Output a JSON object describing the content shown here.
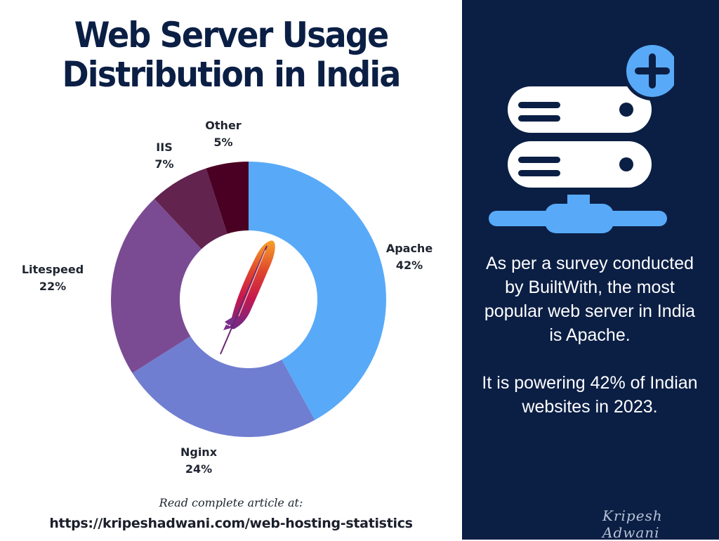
{
  "title": {
    "line1": "Web Server Usage",
    "line2": "Distribution in India"
  },
  "chart_data": {
    "type": "pie",
    "subtype": "donut",
    "title": "Web Server Usage Distribution in India",
    "categories": [
      "Apache",
      "Nginx",
      "Litespeed",
      "IIS",
      "Other"
    ],
    "values": [
      42,
      24,
      22,
      7,
      5
    ],
    "unit": "%",
    "colors": [
      "#58aaf8",
      "#6f7ed0",
      "#7a4b93",
      "#62234f",
      "#4a0022"
    ],
    "labels": [
      {
        "name": "Apache",
        "value": "42%"
      },
      {
        "name": "Nginx",
        "value": "24%"
      },
      {
        "name": "Litespeed",
        "value": "22%"
      },
      {
        "name": "IIS",
        "value": "7%"
      },
      {
        "name": "Other",
        "value": "5%"
      }
    ],
    "start_angle": "12 o'clock, clockwise",
    "center_icon": "apache-feather-logo",
    "legend": "none (direct labels)"
  },
  "footer": {
    "read_label": "Read complete article at:",
    "url": "https://kripeshadwani.com/web-hosting-statistics"
  },
  "sidebar": {
    "icon": "server-add-icon",
    "paragraph1": "As per a survey conducted by BuiltWith, the most popular web server in India is Apache.",
    "paragraph2": "It is powering 42% of Indian websites in 2023.",
    "signature": "Kripesh Adwani"
  },
  "colors": {
    "navy": "#0b1f45",
    "accent_blue": "#58aaf8",
    "white": "#ffffff"
  }
}
